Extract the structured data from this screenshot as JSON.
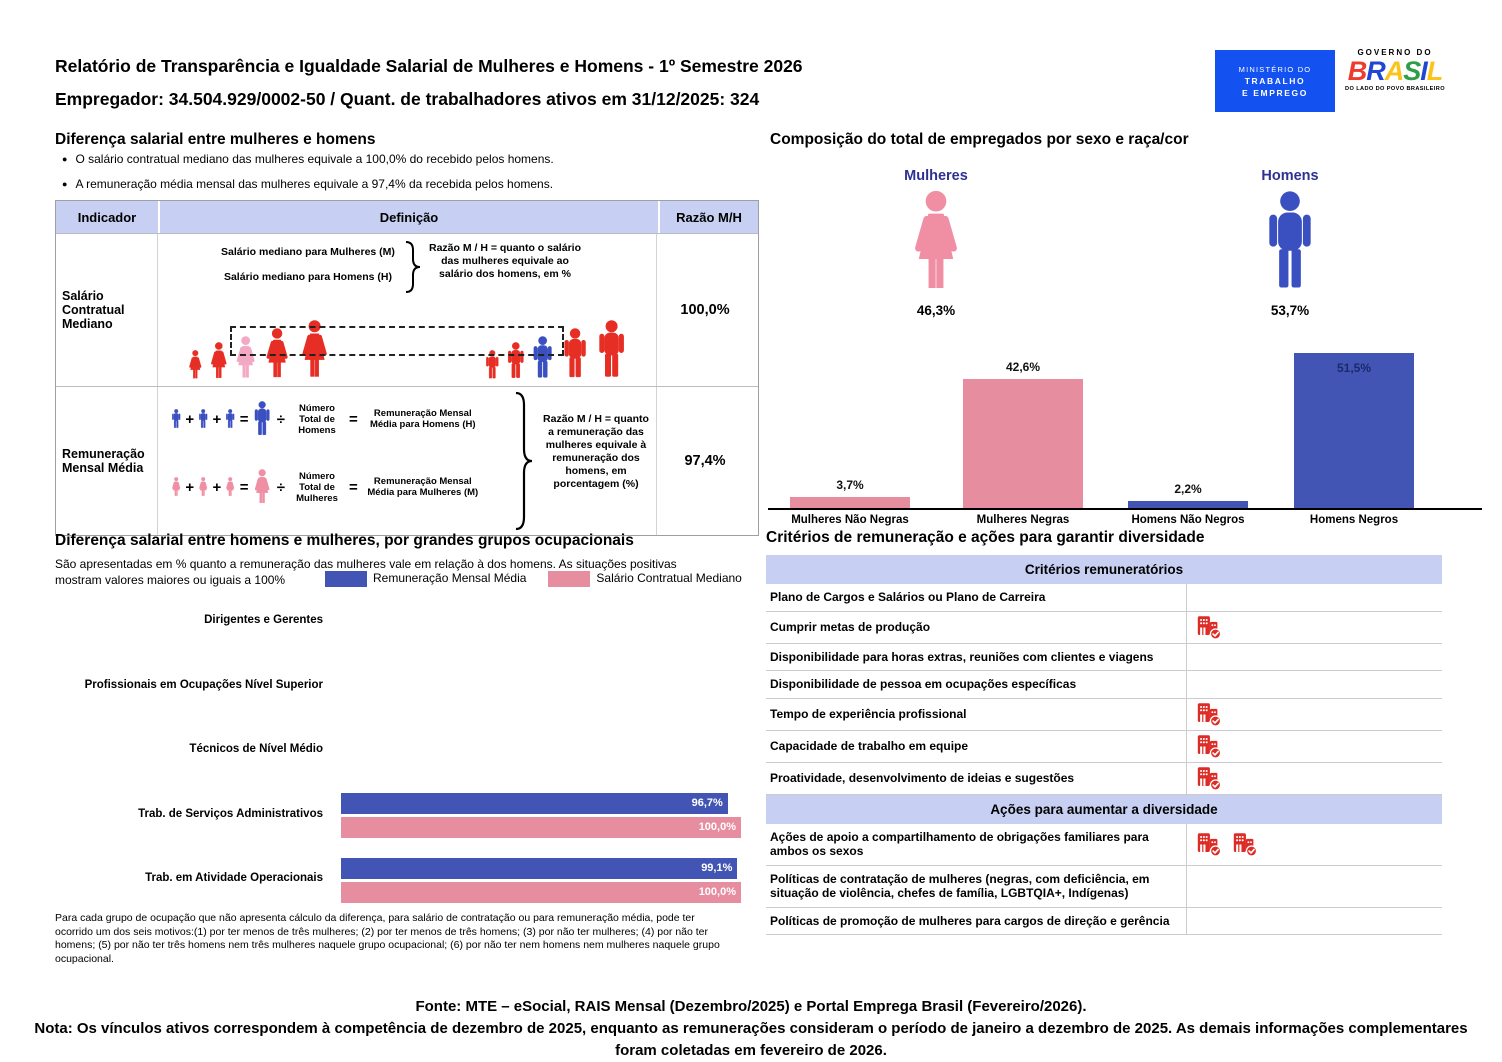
{
  "colors": {
    "lavender": "#c7cff2",
    "navy": "#2e3192",
    "bar_pink": "#e78da0",
    "bar_blue": "#4255b4",
    "icon_pink": "#f08fa3",
    "icon_blue": "#3a4fc0",
    "figure_red": "#e62e24",
    "figure_pink": "#f3a8c4",
    "building_red": "#dd2c26",
    "mte_blue": "#1351f0"
  },
  "header": {
    "title": "Relatório de Transparência e Igualdade Salarial de Mulheres e Homens - 1º Semestre 2026",
    "employer": "Empregador: 34.504.929/0002-50 / Quant. de trabalhadores ativos em 31/12/2025: 324",
    "mte_logo": {
      "line1": "MINISTÉRIO DO",
      "line2": "TRABALHO",
      "line3": "E EMPREGO"
    },
    "gov_logo": {
      "top": "GOVERNO DO",
      "word": "BRASIL",
      "bottom": "DO LADO DO POVO BRASILEIRO"
    }
  },
  "salary_section": {
    "title": "Diferença salarial entre mulheres e homens",
    "bullets": [
      "O salário contratual mediano das mulheres equivale a 100,0% do recebido pelos homens.",
      "A remuneração média mensal das mulheres equivale a 97,4% da recebida pelos homens."
    ],
    "table": {
      "col_indicator": "Indicador",
      "col_definition": "Definição",
      "col_ratio": "Razão M/H",
      "row1": {
        "indicator": "Salário Contratual Mediano",
        "line_women": "Salário mediano para Mulheres (M)",
        "line_men": "Salário mediano para Homens (H)",
        "note": "Razão M / H = quanto o salário das mulheres equivale ao salário dos homens, em %",
        "ratio": "100,0%"
      },
      "row2": {
        "indicator": "Remuneração Mensal Média",
        "men_divisor": "Número Total de Homens",
        "men_result": "Remuneração Mensal Média para Homens (H)",
        "women_divisor": "Número Total de Mulheres",
        "women_result": "Remuneração Mensal Média para Mulheres (M)",
        "note": "Razão M / H = quanto a remuneração das mulheres equivale à remuneração dos homens, em porcentagem (%)",
        "ratio": "97,4%"
      }
    }
  },
  "composition_section": {
    "title": "Composição do total de empregados por sexo e raça/cor",
    "women_label": "Mulheres",
    "women_pct": "46,3%",
    "men_label": "Homens",
    "men_pct": "53,7%"
  },
  "occupational_section": {
    "title": "Diferença salarial entre homens e mulheres, por grandes grupos ocupacionais",
    "subtitle": "São apresentadas em % quanto a remuneração das mulheres vale em relação à dos homens. As situações positivas mostram valores maiores ou iguais a 100%",
    "footnote": "Para cada grupo de ocupação que não apresenta cálculo da diferença, para salário de contratação ou para remuneração média, pode ter ocorrido um dos seis motivos:(1) por ter menos de três mulheres; (2) por ter menos de três homens; (3) por não ter mulheres; (4) por não ter homens; (5) por não ter três homens nem três mulheres naquele grupo ocupacional; (6) por não ter nem homens nem mulheres naquele grupo ocupacional."
  },
  "criteria_section": {
    "title": "Critérios de remuneração e ações para garantir diversidade",
    "groups": [
      {
        "header": "Critérios remuneratórios",
        "rows": [
          {
            "label": "Plano de Cargos e Salários ou Plano de Carreira",
            "checks": 0
          },
          {
            "label": "Cumprir metas de produção",
            "checks": 1
          },
          {
            "label": "Disponibilidade para horas extras, reuniões com clientes e viagens",
            "checks": 0
          },
          {
            "label": "Disponibilidade de pessoa em ocupações específicas",
            "checks": 0
          },
          {
            "label": "Tempo de experiência profissional",
            "checks": 1
          },
          {
            "label": "Capacidade de trabalho em equipe",
            "checks": 1
          },
          {
            "label": "Proatividade, desenvolvimento de ideias e sugestões",
            "checks": 1
          }
        ]
      },
      {
        "header": "Ações para aumentar a diversidade",
        "rows": [
          {
            "label": "Ações de apoio a compartilhamento de obrigações familiares para ambos os sexos",
            "checks": 2
          },
          {
            "label": "Políticas de contratação de mulheres (negras, com deficiência, em situação de violência, chefes de família, LGBTQIA+, Indígenas)",
            "checks": 0
          },
          {
            "label": "Políticas de promoção de mulheres para cargos de direção e gerência",
            "checks": 0
          }
        ]
      }
    ]
  },
  "footer": {
    "fonte": "Fonte: MTE – eSocial, RAIS Mensal (Dezembro/2025) e Portal Emprega Brasil (Fevereiro/2026).",
    "nota": "Nota: Os vínculos ativos correspondem à competência de dezembro de 2025, enquanto as remunerações consideram o período de janeiro a dezembro de 2025. As demais informações complementares foram coletadas em fevereiro de 2026."
  },
  "chart_data": [
    {
      "type": "bar",
      "title": "Composição do total de empregados por sexo e raça/cor",
      "categories": [
        "Mulheres Não Negras",
        "Mulheres Negras",
        "Homens Não Negros",
        "Homens Negros"
      ],
      "values": [
        3.7,
        42.6,
        2.2,
        51.5
      ],
      "value_labels": [
        "3,7%",
        "42,6%",
        "2,2%",
        "51,5%"
      ],
      "label_inside": [
        false,
        false,
        false,
        true
      ],
      "bar_colors": [
        "#e78da0",
        "#e78da0",
        "#4255b4",
        "#4255b4"
      ],
      "summary": {
        "Mulheres": "46,3%",
        "Homens": "53,7%"
      },
      "ylim": [
        0,
        55
      ],
      "grid": false,
      "legend": "none"
    },
    {
      "type": "bar",
      "orientation": "horizontal",
      "title": "Diferença salarial entre homens e mulheres, por grandes grupos ocupacionais",
      "categories": [
        "Dirigentes e Gerentes",
        "Profissionais em Ocupações Nível Superior",
        "Técnicos de Nível Médio",
        "Trab. de Serviços Administrativos",
        "Trab. em Atividade Operacionais"
      ],
      "series": [
        {
          "name": "Remuneração Mensal Média",
          "color": "#4255b4",
          "values": [
            null,
            null,
            null,
            96.7,
            99.1
          ],
          "labels": [
            null,
            null,
            null,
            "96,7%",
            "99,1%"
          ]
        },
        {
          "name": "Salário Contratual Mediano",
          "color": "#e78da0",
          "values": [
            null,
            null,
            null,
            100.0,
            100.0
          ],
          "labels": [
            null,
            null,
            null,
            "100,0%",
            "100,0%"
          ]
        }
      ],
      "xlim": [
        0,
        100
      ],
      "grid": false,
      "legend_position": "top"
    }
  ]
}
